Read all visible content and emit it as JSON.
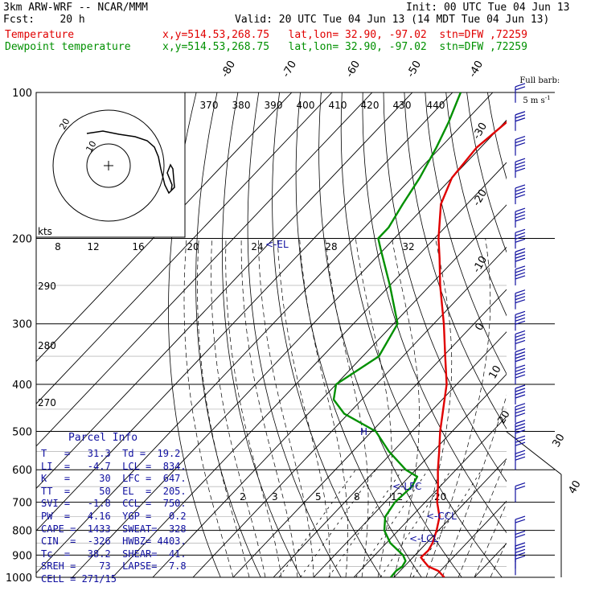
{
  "header": {
    "model": "3km ARW-WRF -- NCAR/MMM",
    "init": "Init: 00 UTC Tue 04 Jun 13",
    "fcst": "Fcst:    20 h",
    "valid": "Valid: 20 UTC Tue 04 Jun 13 (14 MDT Tue 04 Jun 13)",
    "temp_label": "Temperature",
    "temp_loc": "x,y=514.53,268.75   lat,lon= 32.90, -97.02  stn=DFW ,72259",
    "dew_label": "Dewpoint temperature",
    "dew_loc": "x,y=514.53,268.75   lat,lon= 32.90, -97.02  stn=DFW ,72259",
    "barb_note_1": "Full barb:",
    "barb_note_2": "5 m s",
    "barb_note_exp": "-1"
  },
  "colors": {
    "temperature": "#e00000",
    "dewpoint": "#009000",
    "text": "#000000",
    "parcel": "#1010a0",
    "wind": "#1010a0"
  },
  "parcel_info": {
    "title": "Parcel Info",
    "rows": [
      "T   =   31.3  Td =  19.2",
      "LI  =   -4.7  LCL =  834.",
      "K   =     30  LFC =  647.",
      "TT  =     50  EL  =  205.",
      "SVI =   -1.8  CCL =  750.",
      "PW  =   4.16  YGP =   0.2",
      "CAPE =  1433  SWEAT=  328",
      "CIN  =  -326  HWBZ= 4403.",
      "Tc  =   38.2  SHEAR=  41.",
      "SREH =    73  LAPSE=  7.8",
      "CELL = 271/15"
    ]
  },
  "chart_data": {
    "type": "line",
    "title": "",
    "xlabel": "",
    "ylabel": "",
    "y_scale": "log-pressure",
    "ylim": [
      1000,
      100
    ],
    "pressure_ticks": [
      100,
      200,
      300,
      400,
      500,
      600,
      700,
      800,
      900,
      1000
    ],
    "isotherm_labels": [
      "-80",
      "-70",
      "-60",
      "-50",
      "-40",
      "-30",
      "-20",
      "-10",
      "0",
      "10",
      "20",
      "30",
      "40"
    ],
    "theta_labels": [
      "290",
      "280",
      "270"
    ],
    "theta_e_labels": [
      "370",
      "380",
      "390",
      "400",
      "410",
      "420",
      "430",
      "440"
    ],
    "mixing_ratio_labels": [
      "2",
      "3",
      "5",
      "8",
      "12",
      "20"
    ],
    "hodograph": {
      "unit": "kts",
      "ring_labels": [
        "20",
        "10"
      ],
      "speed_labels": [
        "8",
        "12",
        "16",
        "20",
        "24",
        "28",
        "32"
      ],
      "el_marker": "<-EL"
    },
    "levels": {
      "lfc": "<-LFC",
      "ccl": "<-CCL",
      "lcl": "<-LCL",
      "h": "H"
    },
    "series": [
      {
        "name": "Temperature",
        "points": [
          [
            1000,
            32.5
          ],
          [
            970,
            29.5
          ],
          [
            950,
            26.0
          ],
          [
            925,
            23.5
          ],
          [
            910,
            22.0
          ],
          [
            880,
            22.2
          ],
          [
            850,
            21.5
          ],
          [
            800,
            19.5
          ],
          [
            750,
            17.0
          ],
          [
            700,
            13.0
          ],
          [
            650,
            9.5
          ],
          [
            600,
            5.5
          ],
          [
            550,
            1.5
          ],
          [
            500,
            -3.0
          ],
          [
            450,
            -7.5
          ],
          [
            400,
            -12.5
          ],
          [
            350,
            -19.5
          ],
          [
            300,
            -27.5
          ],
          [
            250,
            -37.5
          ],
          [
            220,
            -44.0
          ],
          [
            200,
            -49.0
          ],
          [
            170,
            -56.5
          ],
          [
            150,
            -60.0
          ],
          [
            130,
            -61.0
          ],
          [
            115,
            -59.5
          ],
          [
            100,
            -58.0
          ]
        ]
      },
      {
        "name": "Dewpoint temperature",
        "points": [
          [
            1000,
            19.2
          ],
          [
            970,
            19.0
          ],
          [
            950,
            19.5
          ],
          [
            925,
            19.0
          ],
          [
            900,
            17.0
          ],
          [
            850,
            11.0
          ],
          [
            800,
            6.5
          ],
          [
            750,
            3.5
          ],
          [
            700,
            2.5
          ],
          [
            650,
            3.0
          ],
          [
            620,
            2.0
          ],
          [
            600,
            -2.5
          ],
          [
            550,
            -11.0
          ],
          [
            500,
            -19.0
          ],
          [
            460,
            -31.0
          ],
          [
            430,
            -37.0
          ],
          [
            400,
            -40.0
          ],
          [
            350,
            -36.0
          ],
          [
            300,
            -39.0
          ],
          [
            250,
            -50.0
          ],
          [
            210,
            -61.0
          ],
          [
            200,
            -64.0
          ],
          [
            190,
            -64.0
          ],
          [
            170,
            -66.0
          ],
          [
            150,
            -68.0
          ],
          [
            130,
            -71.0
          ],
          [
            115,
            -74.0
          ],
          [
            100,
            -78.0
          ]
        ]
      }
    ],
    "wind_barbs_ms": [
      {
        "p": 990,
        "spd": 5
      },
      {
        "p": 960,
        "spd": 8
      },
      {
        "p": 930,
        "spd": 10
      },
      {
        "p": 880,
        "spd": 10
      },
      {
        "p": 820,
        "spd": 10
      },
      {
        "p": 700,
        "spd": 10
      },
      {
        "p": 600,
        "spd": 15
      },
      {
        "p": 560,
        "spd": 15
      },
      {
        "p": 520,
        "spd": 20
      },
      {
        "p": 480,
        "spd": 20
      },
      {
        "p": 440,
        "spd": 20
      },
      {
        "p": 400,
        "spd": 20
      },
      {
        "p": 370,
        "spd": 20
      },
      {
        "p": 340,
        "spd": 20
      },
      {
        "p": 310,
        "spd": 20
      },
      {
        "p": 280,
        "spd": 20
      },
      {
        "p": 250,
        "spd": 20
      },
      {
        "p": 230,
        "spd": 20
      },
      {
        "p": 210,
        "spd": 20
      },
      {
        "p": 190,
        "spd": 20
      },
      {
        "p": 170,
        "spd": 20
      },
      {
        "p": 150,
        "spd": 20
      },
      {
        "p": 135,
        "spd": 15
      },
      {
        "p": 120,
        "spd": 15
      },
      {
        "p": 105,
        "spd": 10
      }
    ]
  }
}
